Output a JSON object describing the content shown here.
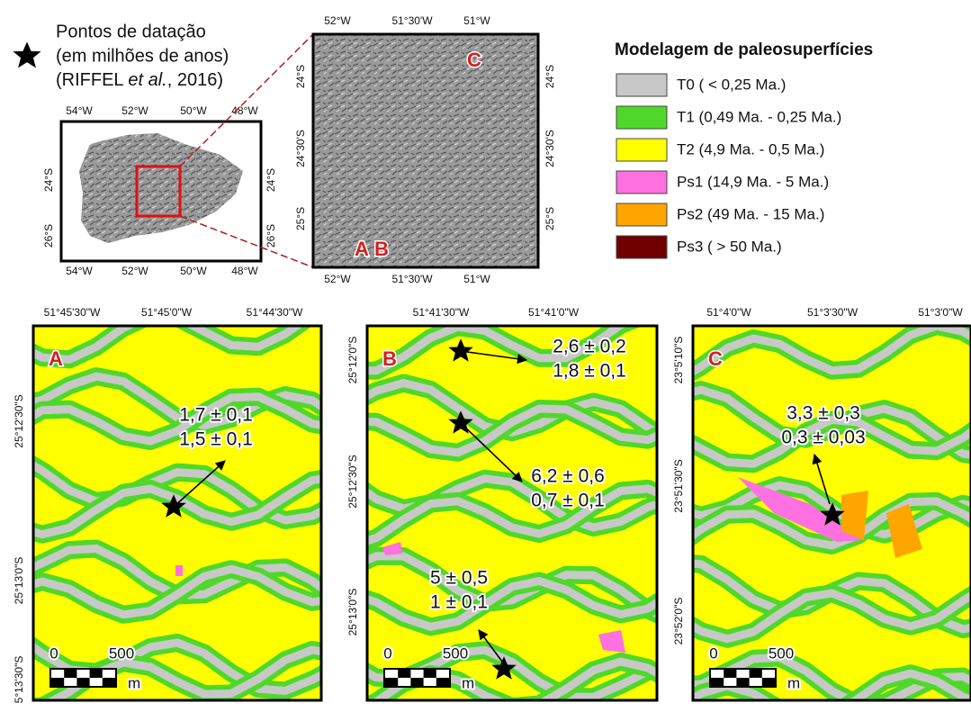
{
  "legend_points": {
    "lines": [
      "Pontos de datação",
      "(em milhões de anos)"
    ],
    "citation": [
      "(RIFFEL ",
      "et al.",
      ", 2016)"
    ]
  },
  "locator": {
    "lon_ticks": [
      "54°W",
      "52°W",
      "50°W",
      "48°W"
    ],
    "lat_ticks": [
      "24°S",
      "26°S"
    ]
  },
  "inset": {
    "lon_ticks": [
      "52°W",
      "51°30'W",
      "51°W"
    ],
    "lat_ticks": [
      "24°S",
      "24°30'S",
      "25°S"
    ],
    "sites": [
      "C",
      "A",
      "B"
    ]
  },
  "legend": {
    "title": "Modelagem de paleosuperfícies",
    "items": [
      {
        "label": "T0 ( < 0,25 Ma.)",
        "color": "#c8c8c8"
      },
      {
        "label": "T1 (0,49 Ma. - 0,25 Ma.)",
        "color": "#4fd82a"
      },
      {
        "label": "T2 (4,9 Ma. - 0,5 Ma.)",
        "color": "#ffff00"
      },
      {
        "label": "Ps1 (14,9 Ma. - 5 Ma.)",
        "color": "#ff70e0"
      },
      {
        "label": "Ps2 (49 Ma. - 15 Ma.)",
        "color": "#ffa500"
      },
      {
        "label": "Ps3 ( > 50 Ma.)",
        "color": "#700000"
      }
    ]
  },
  "panels": [
    {
      "letter": "A",
      "top_ticks": [
        "51°45'30\"W",
        "51°45'0\"W",
        "51°44'30\"W"
      ],
      "left_ticks": [
        "25°12'30\"S",
        "25°13'0\"S",
        "5°13'30\"S"
      ],
      "annotations": [
        [
          "1,7 ± 0,1",
          "1,5 ± 0,1"
        ]
      ],
      "scale": [
        "0",
        "500",
        "m"
      ]
    },
    {
      "letter": "B",
      "top_ticks": [
        "51°41'30\"W",
        "51°41'0\"W"
      ],
      "left_ticks": [
        "25°12'0\"S",
        "25°12'30\"S",
        "25°13'0\"S"
      ],
      "annotations": [
        [
          "2,6 ± 0,2",
          "1,8 ± 0,1"
        ],
        [
          "6,2 ± 0,6",
          "0,7 ± 0,1"
        ],
        [
          "5 ± 0,5",
          "1 ± 0,1"
        ]
      ],
      "scale": [
        "0",
        "500",
        "m"
      ]
    },
    {
      "letter": "C",
      "top_ticks": [
        "51°4'0\"W",
        "51°3'30\"W",
        "51°3'0\"W"
      ],
      "left_ticks": [
        "23°5'10\"S",
        "23°51'30\"S",
        "23°52'0\"S"
      ],
      "annotations": [
        [
          "3,3 ± 0,3",
          "0,3 ± 0,03"
        ]
      ],
      "scale": [
        "0",
        "500",
        "m"
      ]
    }
  ]
}
